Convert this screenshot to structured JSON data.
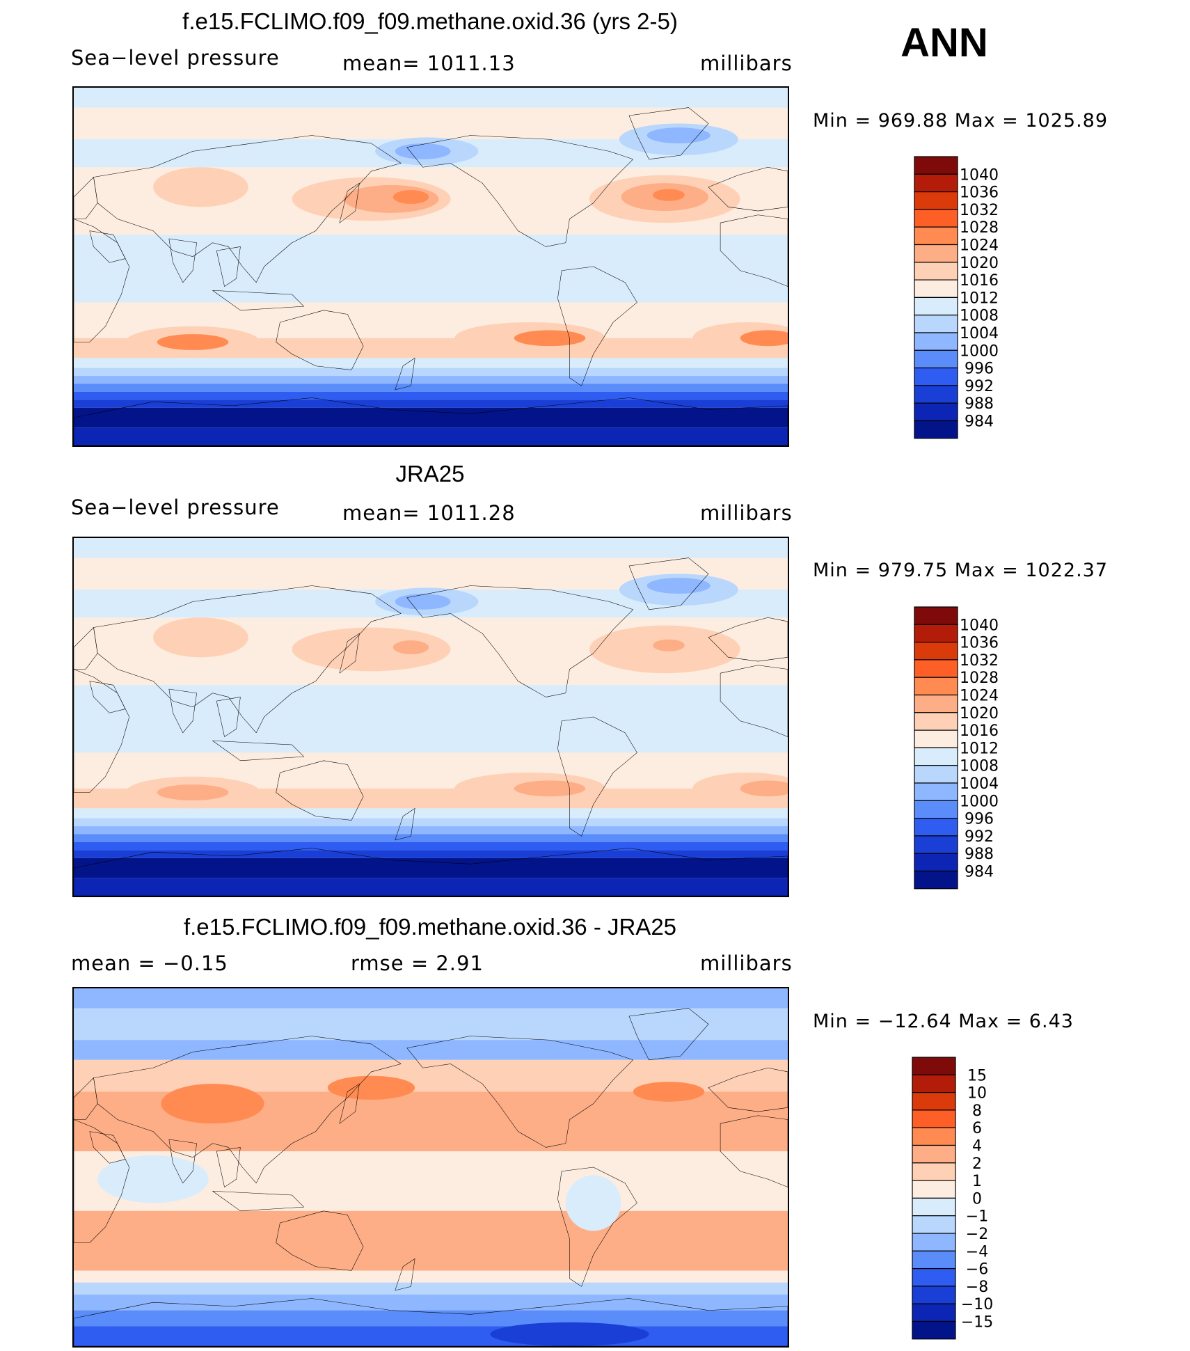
{
  "season": "ANN",
  "panels": [
    {
      "id": "model",
      "title": "f.e15.FCLIMO.f09_f09.methane.oxid.36 (yrs 2-5)",
      "left_text": "Sea−level pressure",
      "center_text": "mean=  1011.13",
      "right_text": "millibars",
      "minmax": "Min  =  969.88  Max  =  1025.89",
      "colorbar": {
        "labels": [
          "1040",
          "1036",
          "1032",
          "1028",
          "1024",
          "1020",
          "1016",
          "1012",
          "1008",
          "1004",
          "1000",
          "996",
          "992",
          "988",
          "984"
        ],
        "colors": [
          "#7f0a0a",
          "#b21c08",
          "#db3a0b",
          "#fe5f26",
          "#ff8b52",
          "#fdae86",
          "#fed1b6",
          "#fdede0",
          "#d9ecfb",
          "#b9d7fd",
          "#8fb7ff",
          "#5a8cfa",
          "#2f5cf1",
          "#1a3fd6",
          "#0c25b5",
          "#03148a"
        ]
      }
    },
    {
      "id": "obs",
      "title": "JRA25",
      "left_text": "Sea−level pressure",
      "center_text": "mean=  1011.28",
      "right_text": "millibars",
      "minmax": "Min  =  979.75  Max  =  1022.37",
      "colorbar": {
        "labels": [
          "1040",
          "1036",
          "1032",
          "1028",
          "1024",
          "1020",
          "1016",
          "1012",
          "1008",
          "1004",
          "1000",
          "996",
          "992",
          "988",
          "984"
        ],
        "colors": [
          "#7f0a0a",
          "#b21c08",
          "#db3a0b",
          "#fe5f26",
          "#ff8b52",
          "#fdae86",
          "#fed1b6",
          "#fdede0",
          "#d9ecfb",
          "#b9d7fd",
          "#8fb7ff",
          "#5a8cfa",
          "#2f5cf1",
          "#1a3fd6",
          "#0c25b5",
          "#03148a"
        ]
      }
    },
    {
      "id": "diff",
      "title": "f.e15.FCLIMO.f09_f09.methane.oxid.36 - JRA25",
      "left_text": "mean  =    −0.15",
      "center_text": "rmse  =     2.91",
      "right_text": "millibars",
      "minmax": "Min  =  −12.64  Max  =      6.43",
      "colorbar": {
        "labels": [
          "15",
          "10",
          "8",
          "6",
          "4",
          "2",
          "1",
          "0",
          "−1",
          "−2",
          "−4",
          "−6",
          "−8",
          "−10",
          "−15"
        ],
        "colors": [
          "#7f0a0a",
          "#b21c08",
          "#db3a0b",
          "#fe5f26",
          "#ff8b52",
          "#fdae86",
          "#fed1b6",
          "#fdede0",
          "#d9ecfb",
          "#b9d7fd",
          "#8fb7ff",
          "#5a8cfa",
          "#2f5cf1",
          "#1a3fd6",
          "#0c25b5",
          "#03148a"
        ]
      }
    }
  ],
  "colors": {
    "land_outline": "#000000",
    "subpolar_low": "#1a3fd6",
    "antarctic": "#03148a"
  }
}
